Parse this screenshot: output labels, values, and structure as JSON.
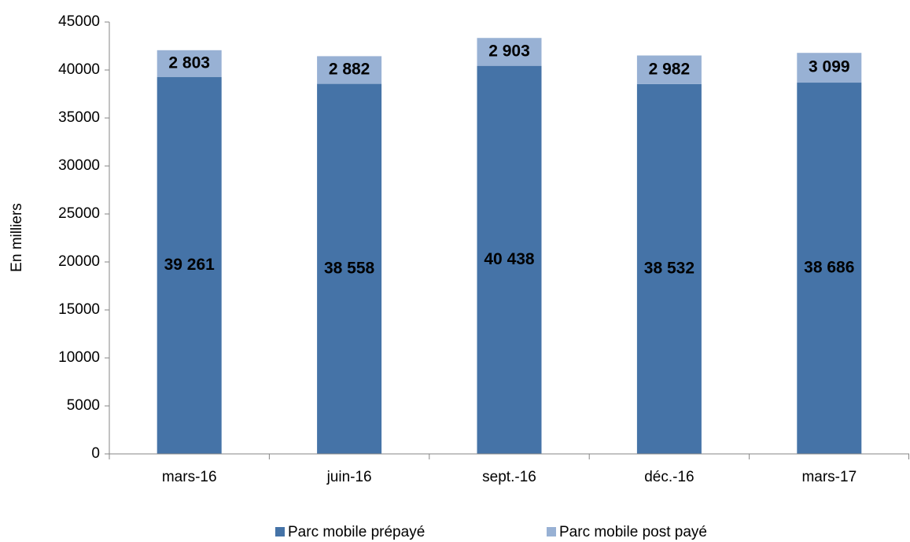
{
  "chart_data": {
    "type": "stacked_bar",
    "ylabel": "En milliers",
    "categories": [
      "mars-16",
      "juin-16",
      "sept.-16",
      "déc.-16",
      "mars-17"
    ],
    "series": [
      {
        "name": "Parc mobile prépayé",
        "color": "#4573a7",
        "values": [
          39261,
          38558,
          40438,
          38532,
          38686
        ],
        "value_labels": [
          "39 261",
          "38 558",
          "40 438",
          "38 532",
          "38 686"
        ]
      },
      {
        "name": "Parc mobile post payé",
        "color": "#98b1d4",
        "values": [
          2803,
          2882,
          2903,
          2982,
          3099
        ],
        "value_labels": [
          "2 803",
          "2 882",
          "2 903",
          "2 982",
          "3 099"
        ]
      }
    ],
    "ylim": [
      0,
      45000
    ],
    "yticks": [
      0,
      5000,
      10000,
      15000,
      20000,
      25000,
      30000,
      35000,
      40000,
      45000
    ],
    "grid": false,
    "legend": "bottom"
  }
}
